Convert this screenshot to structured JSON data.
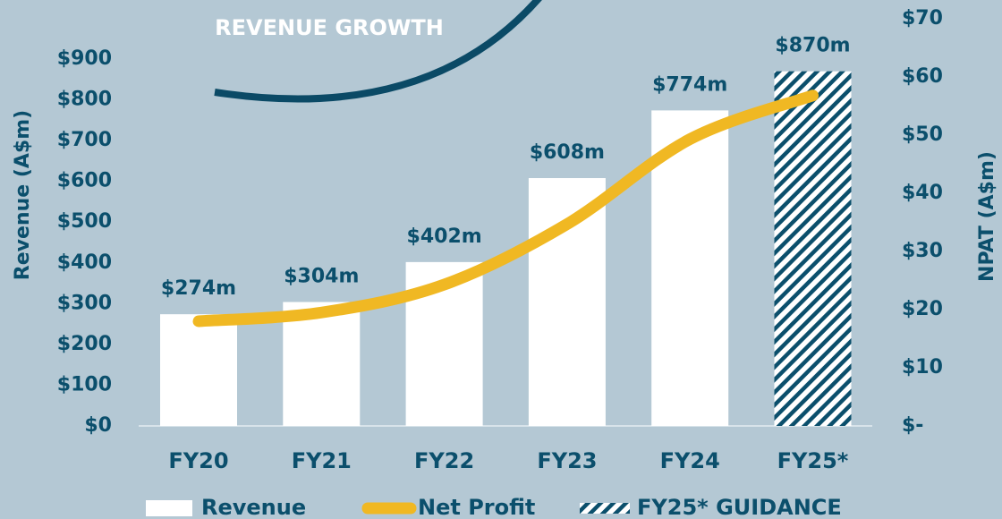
{
  "chart_data": {
    "type": "bar",
    "annotation": "REVENUE GROWTH",
    "ylabel": "Revenue (A$m)",
    "y2label": "NPAT (A$m)",
    "categories": [
      "FY20",
      "FY21",
      "FY22",
      "FY23",
      "FY24",
      "FY25*"
    ],
    "series": [
      {
        "name": "Revenue",
        "type": "bar",
        "color": "#ffffff",
        "values": [
          274,
          304,
          402,
          608,
          774,
          null
        ],
        "value_labels": [
          "$274m",
          "$304m",
          "$402m",
          "$608m",
          "$774m",
          null
        ]
      },
      {
        "name": "Net Profit",
        "type": "line",
        "axis": "y2",
        "color": "#f0b823",
        "values": [
          18,
          19.5,
          24.3,
          34.7,
          49.3,
          56.8
        ]
      },
      {
        "name": "FY25* GUIDANCE",
        "type": "bar",
        "pattern": "hatch",
        "color": "#0b4f6c",
        "values": [
          null,
          null,
          null,
          null,
          null,
          870
        ],
        "value_labels": [
          null,
          null,
          null,
          null,
          null,
          "$870m"
        ]
      }
    ],
    "ylim": [
      0,
      900
    ],
    "yticks": [
      {
        "value": 0,
        "label": "$0"
      },
      {
        "value": 100,
        "label": "$100"
      },
      {
        "value": 200,
        "label": "$200"
      },
      {
        "value": 300,
        "label": "$300"
      },
      {
        "value": 400,
        "label": "$400"
      },
      {
        "value": 500,
        "label": "$500"
      },
      {
        "value": 600,
        "label": "$600"
      },
      {
        "value": 700,
        "label": "$700"
      },
      {
        "value": 800,
        "label": "$800"
      },
      {
        "value": 900,
        "label": "$900"
      }
    ],
    "y2lim": [
      0,
      70
    ],
    "y2ticks": [
      {
        "value": 0,
        "label": "$-"
      },
      {
        "value": 10,
        "label": "$10"
      },
      {
        "value": 20,
        "label": "$20"
      },
      {
        "value": 30,
        "label": "$30"
      },
      {
        "value": 40,
        "label": "$40"
      },
      {
        "value": 50,
        "label": "$50"
      },
      {
        "value": 60,
        "label": "$60"
      },
      {
        "value": 70,
        "label": "$70"
      }
    ]
  }
}
